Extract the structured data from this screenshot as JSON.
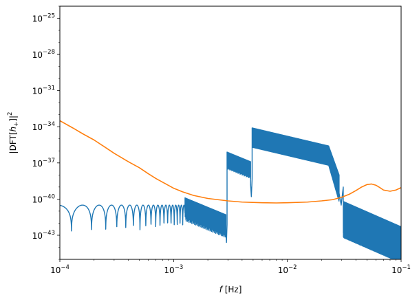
{
  "chart_data": {
    "type": "line",
    "title": "",
    "xlabel": "f [Hz]",
    "xlabel_parts": {
      "var": "f",
      "unit": "[Hz]"
    },
    "ylabel": "|DFT[h+]|²",
    "ylabel_parts": {
      "pre": "|DFT[",
      "var": "h",
      "sub": "+",
      "post": "]|",
      "sup": "2"
    },
    "xscale": "log",
    "yscale": "log",
    "xlim": [
      0.0001,
      0.1
    ],
    "ylim": [
      1e-45,
      1e-24
    ],
    "x_ticks": [
      {
        "value": 0.0001,
        "base": "10",
        "exp": "−4"
      },
      {
        "value": 0.001,
        "base": "10",
        "exp": "−3"
      },
      {
        "value": 0.01,
        "base": "10",
        "exp": "−2"
      },
      {
        "value": 0.1,
        "base": "10",
        "exp": "−1"
      }
    ],
    "y_ticks": [
      {
        "value": 1e-25,
        "base": "10",
        "exp": "−25"
      },
      {
        "value": 1e-28,
        "base": "10",
        "exp": "−28"
      },
      {
        "value": 1e-31,
        "base": "10",
        "exp": "−31"
      },
      {
        "value": 1e-34,
        "base": "10",
        "exp": "−34"
      },
      {
        "value": 1e-37,
        "base": "10",
        "exp": "−37"
      },
      {
        "value": 1e-40,
        "base": "10",
        "exp": "−40"
      },
      {
        "value": 1e-43,
        "base": "10",
        "exp": "−43"
      }
    ],
    "grid": false,
    "legend": "none",
    "series": [
      {
        "color": "#1f77b4",
        "style": "oscillating-spectrum",
        "segments": [
          {
            "x_start": 0.0001,
            "x_end": 0.00126,
            "upper_log10": -40.5,
            "lower_log10": -43.8,
            "note_min_x": 0.00052,
            "min_log10": -44.2
          },
          {
            "x_start": 0.00126,
            "x_end": 0.00288,
            "start_log10": -39.9,
            "end_log10": -41.3,
            "band_low_log10": -41.6
          },
          {
            "x_start": 0.00288,
            "x_end": 0.00295,
            "dip_log10": -43.6
          },
          {
            "x_start": 0.00295,
            "x_end": 0.00475,
            "start_log10": -36.1,
            "end_log10": -36.9,
            "band_low_log10": -37.3
          },
          {
            "x_start": 0.00475,
            "x_end": 0.0049,
            "dip_log10": -39.8
          },
          {
            "x_start": 0.0049,
            "x_end": 0.0285,
            "start_log10": -34.1,
            "end_log10": -35.8,
            "band_low_log10": -35.4
          },
          {
            "x_start": 0.0285,
            "x_end": 0.031,
            "dip_log10": -40.5
          },
          {
            "x_start": 0.031,
            "x_end": 0.1,
            "start_log10": -40.2,
            "end_log10": -42.3,
            "band_low_log10": -43.0
          }
        ]
      },
      {
        "color": "#ff7f0e",
        "points": [
          [
            0.0001,
            -33.5
          ],
          [
            0.00013,
            -34.1
          ],
          [
            0.00016,
            -34.6
          ],
          [
            0.0002,
            -35.1
          ],
          [
            0.00025,
            -35.7
          ],
          [
            0.0003,
            -36.2
          ],
          [
            0.0004,
            -36.9
          ],
          [
            0.0005,
            -37.4
          ],
          [
            0.0006,
            -37.9
          ],
          [
            0.0007,
            -38.3
          ],
          [
            0.0008,
            -38.6
          ],
          [
            0.001,
            -39.1
          ],
          [
            0.0012,
            -39.4
          ],
          [
            0.0015,
            -39.7
          ],
          [
            0.002,
            -39.95
          ],
          [
            0.003,
            -40.15
          ],
          [
            0.004,
            -40.25
          ],
          [
            0.006,
            -40.3
          ],
          [
            0.008,
            -40.32
          ],
          [
            0.01,
            -40.3
          ],
          [
            0.015,
            -40.25
          ],
          [
            0.02,
            -40.15
          ],
          [
            0.025,
            -40.05
          ],
          [
            0.03,
            -39.85
          ],
          [
            0.035,
            -39.6
          ],
          [
            0.04,
            -39.3
          ],
          [
            0.045,
            -39.0
          ],
          [
            0.05,
            -38.8
          ],
          [
            0.055,
            -38.75
          ],
          [
            0.06,
            -38.85
          ],
          [
            0.065,
            -39.05
          ],
          [
            0.07,
            -39.25
          ],
          [
            0.08,
            -39.35
          ],
          [
            0.09,
            -39.25
          ],
          [
            0.1,
            -39.05
          ]
        ]
      }
    ]
  }
}
